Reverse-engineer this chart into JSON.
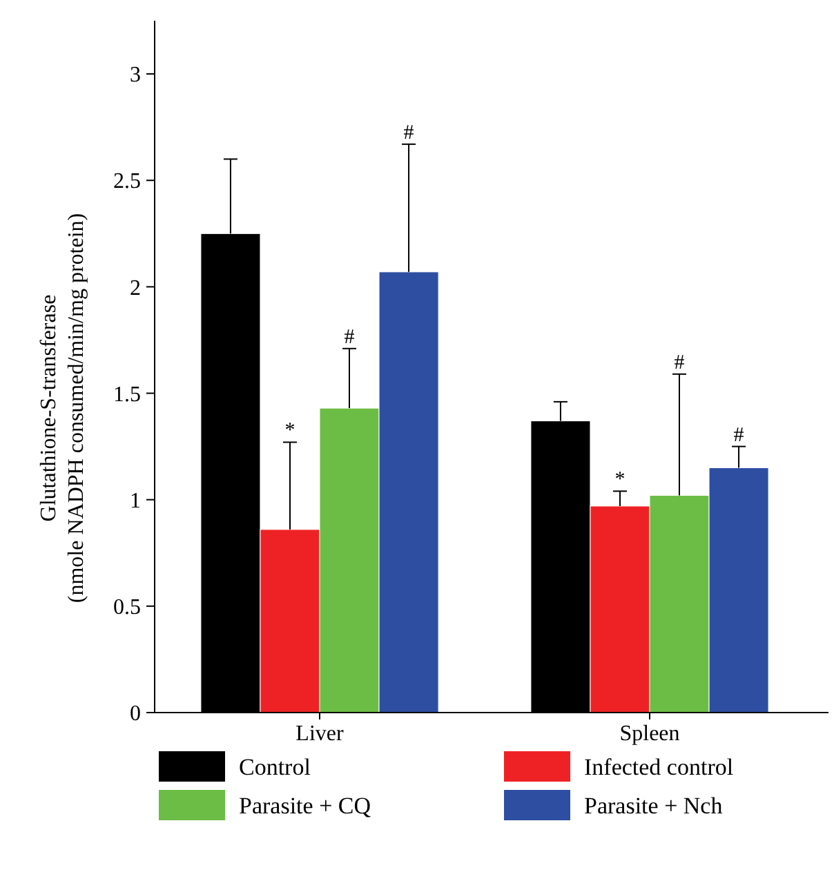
{
  "chart_data": {
    "type": "bar",
    "ylabel": "Glutathione-S-transferase\n(nmole NADPH consumed/min/mg protein)",
    "categories": [
      "Liver",
      "Spleen"
    ],
    "series": [
      {
        "name": "Control",
        "color": "#000000",
        "values": [
          2.25,
          1.37
        ],
        "errors": [
          [
            2.25,
            2.6
          ],
          [
            1.37,
            1.46
          ]
        ]
      },
      {
        "name": "Infected control",
        "color": "#ee2224",
        "values": [
          0.86,
          0.97
        ],
        "errors": [
          [
            0.86,
            1.27
          ],
          [
            0.97,
            1.04
          ]
        ]
      },
      {
        "name": "Parasite + CQ",
        "color": "#6cbd45",
        "values": [
          1.43,
          1.02
        ],
        "errors": [
          [
            1.43,
            1.71
          ],
          [
            1.02,
            1.59
          ]
        ]
      },
      {
        "name": "Parasite + Nch",
        "color": "#2e4ea2",
        "values": [
          2.07,
          1.15
        ],
        "errors": [
          [
            2.07,
            2.67
          ],
          [
            1.15,
            1.25
          ]
        ]
      }
    ],
    "ylim": [
      0,
      3.25
    ],
    "yticks": [
      0,
      0.5,
      1,
      1.5,
      2,
      2.5,
      3
    ],
    "legend": "bottom",
    "grid": false,
    "annotations": [
      "*",
      "#",
      "#",
      "*",
      "#",
      "#"
    ]
  }
}
